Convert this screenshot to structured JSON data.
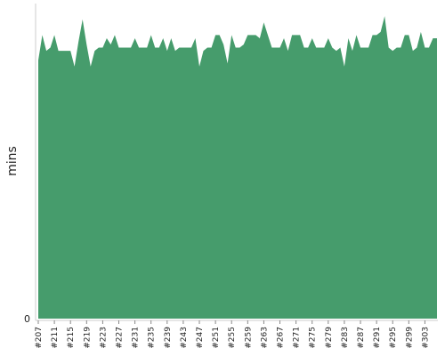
{
  "chart_data": {
    "type": "area",
    "title": "",
    "xlabel": "",
    "ylabel": "mins",
    "ylim": [
      0,
      100
    ],
    "yticks": [
      0
    ],
    "grid": false,
    "legend": "none",
    "color": "#469c6c",
    "categories": [
      "#207",
      "#208",
      "#209",
      "#210",
      "#211",
      "#212",
      "#213",
      "#214",
      "#215",
      "#216",
      "#217",
      "#218",
      "#219",
      "#220",
      "#221",
      "#222",
      "#223",
      "#224",
      "#225",
      "#226",
      "#227",
      "#228",
      "#229",
      "#230",
      "#231",
      "#232",
      "#233",
      "#234",
      "#235",
      "#236",
      "#237",
      "#238",
      "#239",
      "#240",
      "#241",
      "#242",
      "#243",
      "#244",
      "#245",
      "#246",
      "#247",
      "#248",
      "#249",
      "#250",
      "#251",
      "#252",
      "#253",
      "#254",
      "#255",
      "#256",
      "#257",
      "#258",
      "#259",
      "#260",
      "#261",
      "#262",
      "#263",
      "#264",
      "#265",
      "#266",
      "#267",
      "#268",
      "#269",
      "#270",
      "#271",
      "#272",
      "#273",
      "#274",
      "#275",
      "#276",
      "#277",
      "#278",
      "#279",
      "#280",
      "#281",
      "#282",
      "#283",
      "#284",
      "#285",
      "#286",
      "#287",
      "#288",
      "#289",
      "#290",
      "#291",
      "#292",
      "#293",
      "#294",
      "#295",
      "#296",
      "#297",
      "#298",
      "#299",
      "#300",
      "#301",
      "#302",
      "#303",
      "#304",
      "#305",
      "#306"
    ],
    "xtick_labels": [
      "#207",
      "#211",
      "#215",
      "#219",
      "#223",
      "#227",
      "#231",
      "#235",
      "#239",
      "#243",
      "#247",
      "#251",
      "#255",
      "#259",
      "#263",
      "#267",
      "#271",
      "#275",
      "#279",
      "#283",
      "#287",
      "#291",
      "#295",
      "#299",
      "#303"
    ],
    "values": [
      82,
      90,
      85,
      86,
      90,
      85,
      85,
      85,
      85,
      80,
      88,
      95,
      87,
      80,
      85,
      86,
      86,
      89,
      87,
      90,
      86,
      86,
      86,
      86,
      89,
      86,
      86,
      86,
      90,
      86,
      86,
      89,
      85,
      89,
      85,
      86,
      86,
      86,
      86,
      89,
      80,
      85,
      86,
      86,
      90,
      90,
      87,
      81,
      90,
      86,
      86,
      87,
      90,
      90,
      90,
      89,
      94,
      90,
      86,
      86,
      86,
      89,
      85,
      90,
      90,
      90,
      86,
      86,
      89,
      86,
      86,
      86,
      89,
      86,
      85,
      86,
      80,
      89,
      85,
      90,
      86,
      86,
      86,
      90,
      90,
      91,
      96,
      86,
      85,
      86,
      86,
      90,
      90,
      85,
      86,
      91,
      86,
      86,
      89,
      89
    ]
  }
}
